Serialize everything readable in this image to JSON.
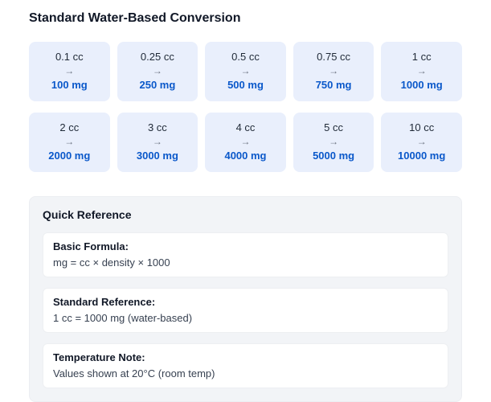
{
  "title": "Standard Water-Based Conversion",
  "arrow": "→",
  "conversions": [
    {
      "cc": "0.1 cc",
      "mg": "100 mg"
    },
    {
      "cc": "0.25 cc",
      "mg": "250 mg"
    },
    {
      "cc": "0.5 cc",
      "mg": "500 mg"
    },
    {
      "cc": "0.75 cc",
      "mg": "750 mg"
    },
    {
      "cc": "1 cc",
      "mg": "1000 mg"
    },
    {
      "cc": "2 cc",
      "mg": "2000 mg"
    },
    {
      "cc": "3 cc",
      "mg": "3000 mg"
    },
    {
      "cc": "4 cc",
      "mg": "4000 mg"
    },
    {
      "cc": "5 cc",
      "mg": "5000 mg"
    },
    {
      "cc": "10 cc",
      "mg": "10000 mg"
    }
  ],
  "quick_reference": {
    "title": "Quick Reference",
    "items": [
      {
        "label": "Basic Formula:",
        "value": "mg = cc × density × 1000"
      },
      {
        "label": "Standard Reference:",
        "value": "1 cc = 1000 mg (water-based)"
      },
      {
        "label": "Temperature Note:",
        "value": "Values shown at 20°C (room temp)"
      }
    ]
  },
  "colors": {
    "accent_blue": "#0a58ca",
    "card_bg": "#e9effc",
    "panel_bg": "#f2f4f7"
  }
}
